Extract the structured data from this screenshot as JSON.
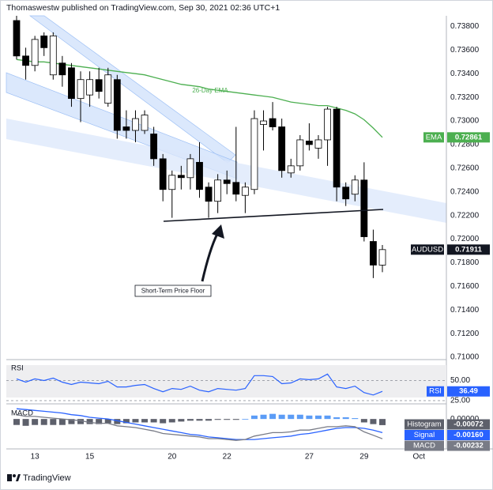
{
  "header": "Thomaswestw published on TradingView.com, Sep 30, 2021 02:36 UTC+1",
  "footer": "TradingView",
  "chart_data": [
    {
      "type": "candlestick",
      "symbol": "AUDUSD",
      "categories": [
        null,
        null,
        "13",
        null,
        null,
        null,
        null,
        null,
        "15",
        null,
        null,
        null,
        null,
        null,
        null,
        null,
        null,
        "20",
        null,
        null,
        null,
        null,
        null,
        "22",
        null,
        null,
        null,
        null,
        null,
        null,
        null,
        null,
        "27",
        null,
        null,
        null,
        null,
        null,
        "29",
        null,
        null,
        null,
        null,
        null,
        "Oct"
      ],
      "open": [
        0.7385,
        0.7355,
        0.7347,
        0.7372,
        0.7339,
        0.7349,
        0.7345,
        0.7319,
        0.7322,
        0.7335,
        0.7315,
        0.7335,
        0.7295,
        0.7292,
        0.7292,
        0.7289,
        0.7268,
        0.7242,
        0.7254,
        0.7252,
        0.7265,
        0.7244,
        0.7232,
        0.725,
        0.7248,
        0.7237,
        0.7242,
        0.7297,
        0.7302,
        0.7295,
        0.7256,
        0.7262,
        0.7283,
        0.7277,
        0.7284,
        0.731,
        0.7244,
        0.7238,
        0.725,
        0.7198,
        0.7178,
        null,
        null,
        null,
        null
      ],
      "high": [
        0.7389,
        0.7362,
        0.7372,
        0.7375,
        0.7375,
        0.7355,
        0.7349,
        0.7342,
        0.7342,
        0.7345,
        0.7345,
        0.7339,
        0.7309,
        0.7309,
        0.7309,
        0.7295,
        0.7272,
        0.7258,
        0.7262,
        0.7272,
        0.7282,
        0.7248,
        0.7255,
        0.7258,
        0.7295,
        0.7248,
        0.7309,
        0.7309,
        0.7316,
        0.7302,
        0.7268,
        0.7288,
        0.7298,
        0.7288,
        0.7312,
        0.7312,
        0.7248,
        0.7254,
        0.7265,
        0.7208,
        0.7195,
        null,
        null,
        null,
        null
      ],
      "low": [
        0.7352,
        0.7335,
        0.7342,
        0.7355,
        0.7335,
        0.7329,
        0.7312,
        0.7299,
        0.7312,
        0.7319,
        0.7312,
        0.7285,
        0.7285,
        0.7282,
        0.7289,
        0.7262,
        0.7232,
        0.7218,
        0.7242,
        0.7242,
        0.7235,
        0.7218,
        0.7222,
        0.7238,
        0.7232,
        0.7222,
        0.7238,
        0.7275,
        0.7292,
        0.7252,
        0.7252,
        0.7258,
        0.7275,
        0.7268,
        0.7262,
        0.7232,
        0.7228,
        0.7232,
        0.7198,
        0.7167,
        0.7172,
        null,
        null,
        null,
        null
      ],
      "close": [
        0.7355,
        0.7347,
        0.7369,
        0.7362,
        0.7372,
        0.7339,
        0.7319,
        0.7335,
        0.7335,
        0.7325,
        0.7339,
        0.7292,
        0.7292,
        0.7302,
        0.7305,
        0.7268,
        0.7242,
        0.7254,
        0.7252,
        0.7268,
        0.7242,
        0.7232,
        0.725,
        0.7247,
        0.7238,
        0.7244,
        0.7302,
        0.73,
        0.7295,
        0.7258,
        0.7262,
        0.7284,
        0.728,
        0.7284,
        0.731,
        0.7244,
        0.7234,
        0.725,
        0.7202,
        0.7178,
        0.71911,
        null,
        null,
        null,
        null
      ],
      "up_color": "#ffffff",
      "down_color": "#000000",
      "wick_color": "#000000",
      "series": [
        {
          "name": "EMA",
          "color": "#4caf50",
          "values": [
            0.7352,
            0.7351,
            0.735,
            0.735,
            0.7349,
            0.7348,
            0.7347,
            0.7346,
            0.7345,
            0.7344,
            0.7343,
            0.7342,
            0.7341,
            0.734,
            0.7339,
            0.7337,
            0.7335,
            0.7333,
            0.7331,
            0.733,
            0.7329,
            0.7327,
            0.7326,
            0.7325,
            0.7324,
            0.7323,
            0.7322,
            0.7321,
            0.732,
            0.7318,
            0.7316,
            0.7315,
            0.7314,
            0.7313,
            0.7313,
            0.7311,
            0.7309,
            0.7306,
            0.7301,
            0.7294,
            0.72861,
            null,
            null,
            null,
            null
          ]
        }
      ],
      "annotations": [
        "26-Day EMA",
        "Short-Term Price Floor"
      ],
      "ylim": [
        0.7098,
        0.7389
      ],
      "yticks": [
        {
          "value": 0.71,
          "label": "0.71000"
        },
        {
          "value": 0.712,
          "label": "0.71200"
        },
        {
          "value": 0.714,
          "label": "0.71400"
        },
        {
          "value": 0.716,
          "label": "0.71600"
        },
        {
          "value": 0.718,
          "label": "0.71800"
        },
        {
          "value": 0.72,
          "label": "0.72000"
        },
        {
          "value": 0.722,
          "label": "0.72200"
        },
        {
          "value": 0.724,
          "label": "0.72400"
        },
        {
          "value": 0.726,
          "label": "0.72600"
        },
        {
          "value": 0.728,
          "label": "0.72800"
        },
        {
          "value": 0.73,
          "label": "0.73000"
        },
        {
          "value": 0.732,
          "label": "0.73200"
        },
        {
          "value": 0.734,
          "label": "0.73400"
        },
        {
          "value": 0.736,
          "label": "0.73600"
        },
        {
          "value": 0.738,
          "label": "0.73800"
        }
      ],
      "grid": false
    },
    {
      "type": "line",
      "title": "RSI",
      "series": [
        {
          "name": "RSI",
          "color": "#2962ff",
          "values": [
            52,
            48,
            52,
            50,
            53,
            48,
            45,
            48,
            47,
            46,
            49,
            42,
            42,
            44,
            45,
            40,
            36,
            40,
            39,
            43,
            38,
            36,
            40,
            39,
            38,
            40,
            56,
            56,
            55,
            46,
            47,
            52,
            51,
            52,
            58,
            42,
            40,
            43,
            35,
            32,
            36.49,
            null,
            null,
            null,
            null
          ]
        }
      ],
      "ylim": [
        22,
        73
      ],
      "yticks": [
        {
          "value": 50,
          "label": "50.00"
        },
        {
          "value": 25,
          "label": "25.00"
        }
      ],
      "grid": true
    },
    {
      "type": "macd",
      "title": "MACD",
      "up_color": "#5b9cf6",
      "down_color": "#5d606b",
      "series": [
        {
          "name": "Histogram",
          "color": "#5d606b",
          "values": [
            -0.0007,
            -0.0008,
            -0.0007,
            -0.0007,
            -0.0007,
            -0.0007,
            -0.0006,
            -0.0006,
            -0.0006,
            -0.0006,
            -0.0005,
            -0.0006,
            -0.0005,
            -0.0004,
            -0.0004,
            -0.0004,
            -0.0005,
            -0.0004,
            -0.0003,
            -0.0002,
            -0.0002,
            -0.0002,
            -0.0001,
            -0.0001,
            -0.0001,
            0,
            0.0004,
            0.0005,
            0.0006,
            0.0005,
            0.0005,
            0.0005,
            0.0004,
            0.0004,
            0.0004,
            0.0002,
            0.0002,
            0.0001,
            -0.0004,
            -0.0006,
            -0.00072,
            null,
            null,
            null,
            null
          ]
        },
        {
          "name": "Signal",
          "color": "#2962ff",
          "values": [
            0.0012,
            0.0011,
            0.001,
            0.0009,
            0.0008,
            0.0007,
            0.0005,
            0.0004,
            0.0002,
            0.0001,
            0,
            -0.0002,
            -0.0004,
            -0.0006,
            -0.0008,
            -0.001,
            -0.0012,
            -0.0014,
            -0.0016,
            -0.0018,
            -0.0019,
            -0.0021,
            -0.0022,
            -0.0023,
            -0.0024,
            -0.0024,
            -0.0024,
            -0.0023,
            -0.0022,
            -0.0021,
            -0.002,
            -0.0018,
            -0.0017,
            -0.0015,
            -0.0013,
            -0.0011,
            -0.001,
            -0.001,
            -0.0011,
            -0.0013,
            -0.0016,
            null,
            null,
            null,
            null
          ],
          "value_labels": [
            null,
            null,
            null,
            null,
            null,
            null,
            null,
            null,
            null,
            null,
            null,
            null,
            null,
            null,
            null,
            null,
            null,
            null,
            null,
            null,
            null,
            null,
            null,
            null,
            null,
            null,
            null,
            null,
            null,
            null,
            null,
            null,
            null,
            null,
            null,
            null,
            null,
            null,
            null,
            null,
            "-0.00160",
            null,
            null,
            null,
            null
          ]
        },
        {
          "name": "MACD",
          "color": "#787b86",
          "values": [
            0.0005,
            0.0003,
            0.0003,
            0.0002,
            0.0001,
            0,
            -0.0001,
            -0.0002,
            -0.0004,
            -0.0005,
            -0.0005,
            -0.0008,
            -0.0009,
            -0.001,
            -0.0012,
            -0.0014,
            -0.0017,
            -0.0018,
            -0.0019,
            -0.002,
            -0.0021,
            -0.0023,
            -0.0023,
            -0.0024,
            -0.0025,
            -0.0024,
            -0.002,
            -0.0018,
            -0.0016,
            -0.0016,
            -0.0015,
            -0.0013,
            -0.0013,
            -0.0011,
            -0.0009,
            -0.0009,
            -0.0008,
            -0.0009,
            -0.0015,
            -0.0019,
            -0.00232,
            null,
            null,
            null,
            null
          ]
        }
      ],
      "ylim": [
        -0.0035,
        0.0014
      ],
      "yticks": [
        {
          "value": 0,
          "label": "0.00000"
        }
      ],
      "grid": false
    }
  ]
}
